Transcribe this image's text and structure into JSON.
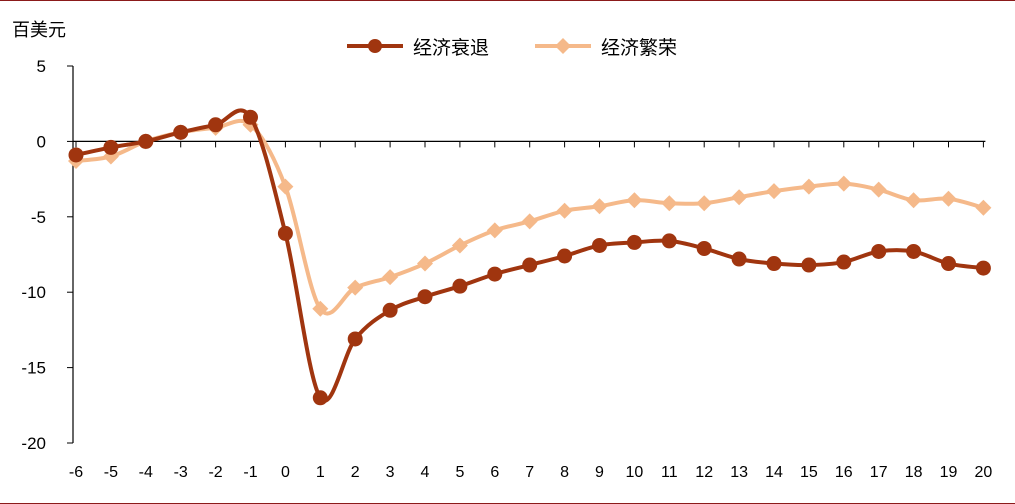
{
  "chart_data": {
    "type": "line",
    "unit_label": "百美元",
    "x": [
      -6,
      -5,
      -4,
      -3,
      -2,
      -1,
      0,
      1,
      2,
      3,
      4,
      5,
      6,
      7,
      8,
      9,
      10,
      11,
      12,
      13,
      14,
      15,
      16,
      17,
      18,
      19,
      20
    ],
    "ylim": [
      -20,
      5
    ],
    "yticks": [
      5,
      0,
      -5,
      -10,
      -15,
      -20
    ],
    "legend_position": "top-center",
    "grid": false,
    "series": [
      {
        "name": "经济衰退",
        "color": "#a0350f",
        "marker": "circle",
        "values": [
          -0.9,
          -0.4,
          0,
          0.6,
          1.1,
          1.6,
          -6.1,
          -17.0,
          -13.1,
          -11.2,
          -10.3,
          -9.6,
          -8.8,
          -8.2,
          -7.6,
          -6.9,
          -6.7,
          -6.6,
          -7.1,
          -7.8,
          -8.1,
          -8.2,
          -8.0,
          -7.3,
          -7.3,
          -8.1,
          -8.4
        ]
      },
      {
        "name": "经济繁荣",
        "color": "#f5b98a",
        "marker": "diamond",
        "values": [
          -1.3,
          -1.0,
          0,
          0.6,
          0.9,
          1.1,
          -3.0,
          -11.1,
          -9.7,
          -9.0,
          -8.1,
          -6.9,
          -5.9,
          -5.3,
          -4.6,
          -4.3,
          -3.9,
          -4.1,
          -4.1,
          -3.7,
          -3.3,
          -3.0,
          -2.8,
          -3.2,
          -3.9,
          -3.8,
          -4.4
        ]
      }
    ]
  }
}
